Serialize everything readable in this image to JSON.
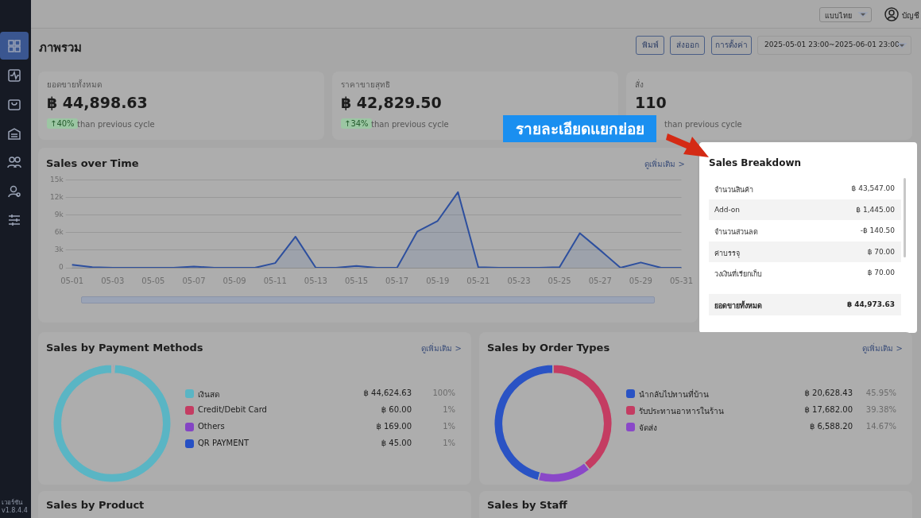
{
  "chart_data": [
    {
      "type": "other",
      "title": "ภาพรวม",
      "annotations": [
        "แบบไทย",
        "บัญชี",
        "พิมพ์",
        "ส่งออก",
        "การตั้งค่า",
        "2025-05-01 23:00~2025-06-01 23:00",
        "เวอร์ชัน",
        "v1.8.4.4"
      ]
    },
    {
      "type": "other",
      "title": "ยอดขายทั้งหมด",
      "annotations": [
        "฿ 44,898.63",
        "↑40%",
        "than previous cycle"
      ]
    },
    {
      "type": "other",
      "title": "ราคาขายสุทธิ",
      "annotations": [
        "฿ 42,829.50",
        "↑34%",
        "than previous cycle"
      ]
    },
    {
      "type": "other",
      "title": "สั่ง",
      "annotations": [
        "110",
        "than previous cycle"
      ]
    },
    {
      "type": "area",
      "title": "Sales over Time",
      "annotations": [
        "ดูเพิ่มเติม >"
      ],
      "categories": [
        "05-01",
        null,
        "05-03",
        null,
        "05-05",
        null,
        "05-07",
        null,
        "05-09",
        null,
        "05-11",
        null,
        "05-13",
        null,
        "05-15",
        null,
        "05-17",
        null,
        "05-19",
        null,
        "05-21",
        null,
        "05-23",
        null,
        "05-25",
        null,
        "05-27",
        null,
        "05-29",
        null,
        "05-31"
      ],
      "series": [
        {
          "color": "#2d4f9e",
          "values": [
            500,
            100,
            0,
            0,
            0,
            0,
            200,
            0,
            0,
            0,
            800,
            5300,
            0,
            0,
            300,
            0,
            0,
            6200,
            8000,
            12900,
            100,
            0,
            0,
            0,
            100,
            5900,
            3000,
            0,
            900,
            0,
            0
          ]
        }
      ],
      "ylim": [
        0,
        15000
      ],
      "yticks": [
        0,
        {
          "value": 3000,
          "label": "3k"
        },
        {
          "value": 6000,
          "label": "6k"
        },
        {
          "value": 9000,
          "label": "9k"
        },
        {
          "value": 12000,
          "label": "12k"
        },
        {
          "value": 15000,
          "label": "15k"
        }
      ],
      "grid": "y"
    },
    {
      "type": "other",
      "title": "Sales Breakdown",
      "annotations": [
        "จำนวนสินค้า",
        "฿ 43,547.00",
        "Add-on",
        "฿ 1,445.00",
        "จำนวนส่วนลด",
        "-฿ 140.50",
        "ค่าบรรจุ",
        "฿ 70.00",
        "วงเงินที่เรียกเก็บ",
        "฿ 70.00",
        "ยอดขายทั้งหมด",
        "฿ 44,973.63"
      ]
    },
    {
      "type": "other",
      "annotations": [
        "รายละเอียดแยกย่อย"
      ]
    },
    {
      "type": "donut",
      "title": "Sales by Payment Methods",
      "annotations": [
        "ดูเพิ่มเติม >",
        "100%",
        "1%",
        "1%",
        "1%"
      ],
      "categories": [
        "เงินสด",
        "Credit/Debit Card",
        "Others",
        "QR PAYMENT"
      ],
      "values": [
        44624.63,
        60,
        169,
        45
      ],
      "value_labels": [
        "฿ 44,624.63",
        "฿ 60.00",
        "฿ 169.00",
        "฿ 45.00"
      ],
      "colors": [
        "#5ab5c4",
        "#c43c62",
        "#8444c4",
        "#2650c4"
      ],
      "legend": "right"
    },
    {
      "type": "donut",
      "title": "Sales by Order Types",
      "annotations": [
        "ดูเพิ่มเติม >",
        "45.95%",
        "39.38%",
        "14.67%"
      ],
      "categories": [
        "นำกลับไปทานที่บ้าน",
        "รับประทานอาหารในร้าน",
        "จัดส่ง"
      ],
      "values": [
        20628.43,
        17682.0,
        6588.2
      ],
      "value_labels": [
        "฿ 20,628.43",
        "฿ 17,682.00",
        "฿ 6,588.20"
      ],
      "colors": [
        "#2a53c4",
        "#c43c62",
        "#8a48c8"
      ],
      "legend": "right"
    },
    {
      "type": "other",
      "title": "Sales by Product"
    },
    {
      "type": "other",
      "title": "Sales by Staff"
    }
  ]
}
